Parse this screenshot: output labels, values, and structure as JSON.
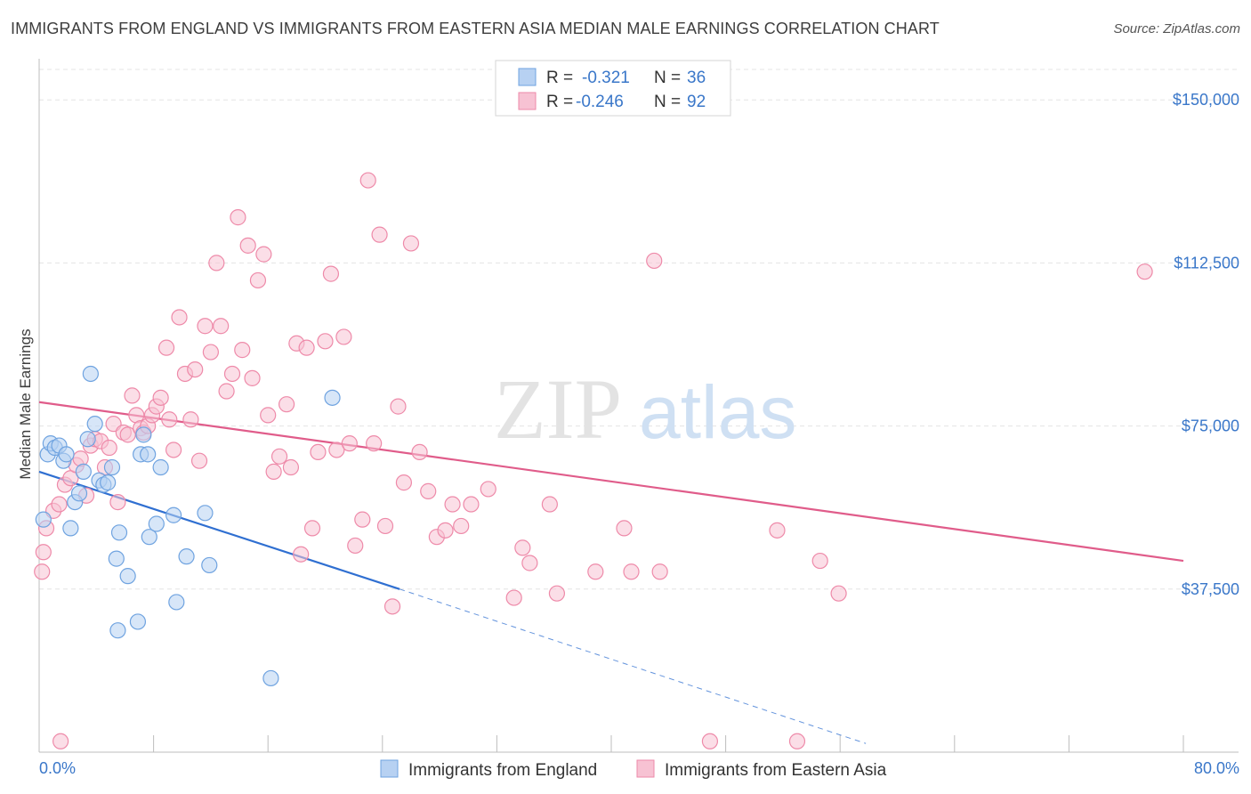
{
  "title": "IMMIGRANTS FROM ENGLAND VS IMMIGRANTS FROM EASTERN ASIA MEDIAN MALE EARNINGS CORRELATION CHART",
  "source": "Source: ZipAtlas.com",
  "watermark": {
    "zip": "ZIP",
    "atlas": "atlas"
  },
  "colors": {
    "blue": "#6fa3e0",
    "blue_fill": "#b7d1f2",
    "blue_line": "#2f6fd1",
    "pink": "#ee8aa9",
    "pink_fill": "#f7c2d3",
    "pink_line": "#e05c8a",
    "tick_text": "#3a77c9"
  },
  "legend": {
    "r_label": "R =",
    "n_label": "N =",
    "rows": [
      {
        "r": "-0.321",
        "n": "36",
        "series": "england"
      },
      {
        "r": "-0.246",
        "n": "92",
        "series": "easternasia"
      }
    ]
  },
  "chart_data": {
    "type": "scatter",
    "title": "IMMIGRANTS FROM ENGLAND VS IMMIGRANTS FROM EASTERN ASIA MEDIAN MALE EARNINGS CORRELATION CHART",
    "xlabel": "",
    "ylabel": "Median Male Earnings",
    "xlim": [
      0,
      80
    ],
    "ylim": [
      0,
      157000
    ],
    "x_tick_labels": [
      "0.0%",
      "80.0%"
    ],
    "y_ticks": [
      37500,
      75000,
      112500,
      150000
    ],
    "y_tick_labels": [
      "$37,500",
      "$75,000",
      "$112,500",
      "$150,000"
    ],
    "series": [
      {
        "name": "Immigrants from England",
        "color": "#6fa3e0",
        "trend": {
          "x0": 0,
          "y0": 64500,
          "x1": 25.2,
          "y1": 37500,
          "dash_x1": 57.8,
          "dash_y1": 2000
        },
        "points": [
          [
            0.3,
            53500
          ],
          [
            0.6,
            68500
          ],
          [
            0.8,
            71000
          ],
          [
            1.1,
            70000
          ],
          [
            1.4,
            70500
          ],
          [
            1.7,
            67000
          ],
          [
            1.9,
            68500
          ],
          [
            2.2,
            51500
          ],
          [
            2.5,
            57500
          ],
          [
            2.8,
            59500
          ],
          [
            3.1,
            64500
          ],
          [
            3.4,
            72000
          ],
          [
            3.6,
            87000
          ],
          [
            3.9,
            75500
          ],
          [
            4.2,
            62500
          ],
          [
            4.5,
            61500
          ],
          [
            4.8,
            62000
          ],
          [
            5.1,
            65500
          ],
          [
            5.6,
            50500
          ],
          [
            6.2,
            40500
          ],
          [
            5.4,
            44500
          ],
          [
            5.5,
            28000
          ],
          [
            6.9,
            30000
          ],
          [
            7.1,
            68500
          ],
          [
            7.3,
            73000
          ],
          [
            7.6,
            68500
          ],
          [
            7.7,
            49500
          ],
          [
            8.2,
            52500
          ],
          [
            8.5,
            65500
          ],
          [
            9.4,
            54500
          ],
          [
            9.6,
            34500
          ],
          [
            10.3,
            45000
          ],
          [
            11.9,
            43000
          ],
          [
            11.6,
            55000
          ],
          [
            16.2,
            17000
          ],
          [
            20.5,
            81500
          ]
        ]
      },
      {
        "name": "Immigrants from Eastern Asia",
        "color": "#ee8aa9",
        "trend": {
          "x0": 0,
          "y0": 80500,
          "x1": 80,
          "y1": 44000
        },
        "points": [
          [
            0.3,
            46000
          ],
          [
            0.5,
            51500
          ],
          [
            1.0,
            55500
          ],
          [
            1.4,
            57000
          ],
          [
            1.8,
            61500
          ],
          [
            2.2,
            63000
          ],
          [
            2.6,
            66000
          ],
          [
            2.9,
            67500
          ],
          [
            3.3,
            59000
          ],
          [
            3.6,
            70500
          ],
          [
            3.9,
            72000
          ],
          [
            4.3,
            71500
          ],
          [
            4.6,
            65500
          ],
          [
            4.9,
            70000
          ],
          [
            5.2,
            75500
          ],
          [
            5.5,
            57500
          ],
          [
            5.9,
            73500
          ],
          [
            6.2,
            73000
          ],
          [
            6.5,
            82000
          ],
          [
            6.8,
            77500
          ],
          [
            7.1,
            74500
          ],
          [
            7.3,
            73500
          ],
          [
            7.6,
            75000
          ],
          [
            7.9,
            77500
          ],
          [
            8.2,
            79500
          ],
          [
            8.5,
            81500
          ],
          [
            8.9,
            93000
          ],
          [
            9.1,
            76500
          ],
          [
            9.4,
            69500
          ],
          [
            9.8,
            100000
          ],
          [
            10.2,
            87000
          ],
          [
            10.6,
            76500
          ],
          [
            10.9,
            88000
          ],
          [
            11.2,
            67000
          ],
          [
            11.6,
            98000
          ],
          [
            12.0,
            92000
          ],
          [
            12.4,
            112500
          ],
          [
            12.7,
            98000
          ],
          [
            13.1,
            83000
          ],
          [
            13.5,
            87000
          ],
          [
            13.9,
            123000
          ],
          [
            14.2,
            92500
          ],
          [
            14.6,
            116500
          ],
          [
            14.9,
            86000
          ],
          [
            15.3,
            108500
          ],
          [
            15.7,
            114500
          ],
          [
            16.0,
            77500
          ],
          [
            16.4,
            64500
          ],
          [
            16.8,
            68000
          ],
          [
            17.3,
            80000
          ],
          [
            17.6,
            65500
          ],
          [
            18.0,
            94000
          ],
          [
            18.3,
            45500
          ],
          [
            18.7,
            93000
          ],
          [
            19.1,
            51500
          ],
          [
            19.5,
            69000
          ],
          [
            20.0,
            94500
          ],
          [
            20.4,
            110000
          ],
          [
            20.8,
            69500
          ],
          [
            21.3,
            95500
          ],
          [
            21.7,
            71000
          ],
          [
            22.1,
            47500
          ],
          [
            22.6,
            53500
          ],
          [
            23.0,
            131500
          ],
          [
            23.4,
            71000
          ],
          [
            23.8,
            119000
          ],
          [
            24.2,
            52000
          ],
          [
            24.7,
            33500
          ],
          [
            25.1,
            79500
          ],
          [
            25.5,
            62000
          ],
          [
            26.0,
            117000
          ],
          [
            26.6,
            69000
          ],
          [
            27.2,
            60000
          ],
          [
            27.8,
            49500
          ],
          [
            28.4,
            51000
          ],
          [
            28.9,
            57000
          ],
          [
            29.5,
            52000
          ],
          [
            30.2,
            57000
          ],
          [
            31.4,
            60500
          ],
          [
            33.2,
            35500
          ],
          [
            33.8,
            47000
          ],
          [
            34.3,
            43500
          ],
          [
            35.7,
            57000
          ],
          [
            36.2,
            36500
          ],
          [
            38.9,
            41500
          ],
          [
            40.9,
            51500
          ],
          [
            41.4,
            41500
          ],
          [
            43.0,
            113000
          ],
          [
            43.4,
            41500
          ],
          [
            46.9,
            2500
          ],
          [
            51.6,
            51000
          ],
          [
            53.0,
            2500
          ],
          [
            54.6,
            44000
          ],
          [
            55.9,
            36500
          ],
          [
            77.3,
            110500
          ],
          [
            0.2,
            41500
          ],
          [
            1.5,
            2500
          ]
        ]
      }
    ]
  },
  "bottom_legend": [
    {
      "label": "Immigrants from England",
      "series": "england"
    },
    {
      "label": "Immigrants from Eastern Asia",
      "series": "easternasia"
    }
  ]
}
